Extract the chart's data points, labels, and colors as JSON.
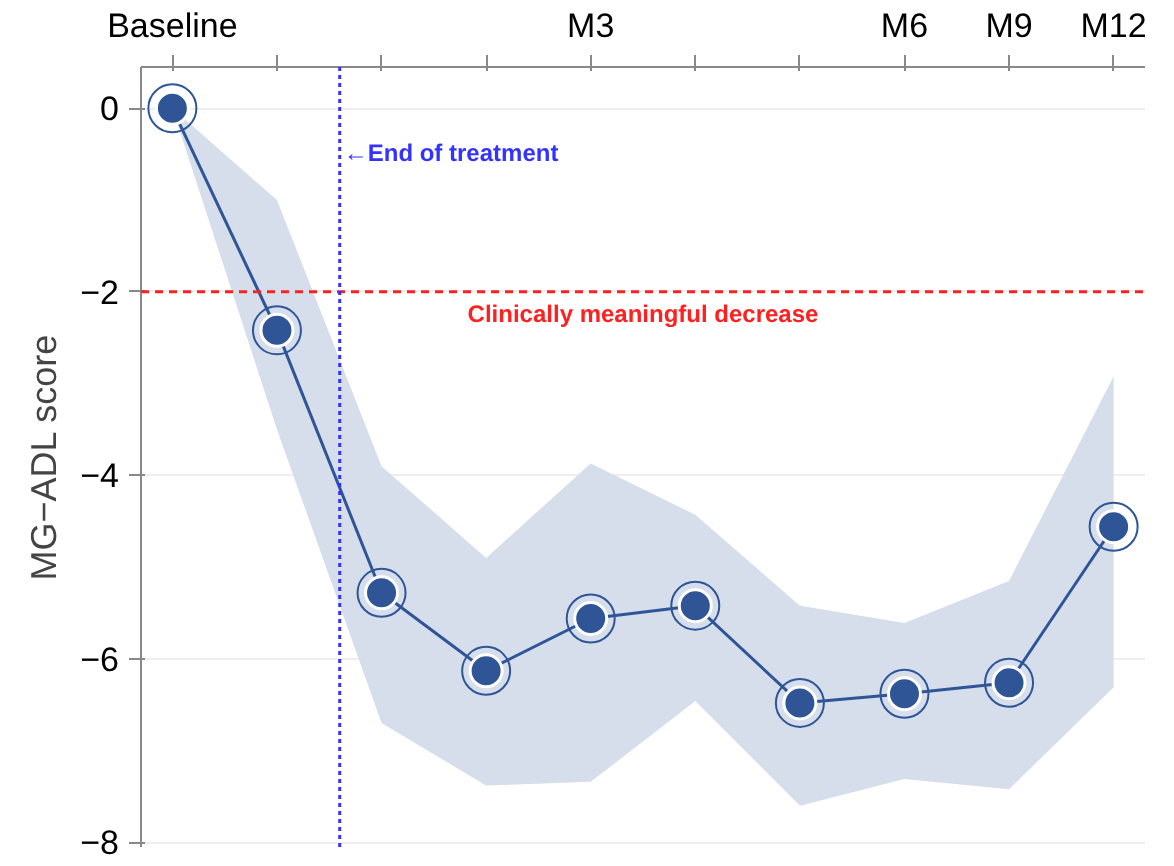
{
  "chart_data": {
    "type": "line",
    "ylabel": "MG−ADL score",
    "categories": [
      "Baseline",
      null,
      null,
      null,
      "M3",
      null,
      null,
      "M6",
      "M9",
      "M12"
    ],
    "series": [
      {
        "color": "#2f5597",
        "values": [
          0,
          -2.42,
          -5.28,
          -6.13,
          -5.56,
          -5.42,
          -6.48,
          -6.38,
          -6.26,
          -4.56
        ],
        "lower": [
          0,
          -3.5,
          -6.7,
          -7.38,
          -7.34,
          -6.46,
          -7.6,
          -7.31,
          -7.42,
          -6.31
        ],
        "upper": [
          0,
          -1.0,
          -3.9,
          -4.9,
          -3.87,
          -4.43,
          -5.42,
          -5.61,
          -5.15,
          -2.92
        ]
      }
    ],
    "ylim": [
      -8.05,
      0.45
    ],
    "yticks": [
      0,
      {
        "value": -2,
        "label": "−2"
      },
      {
        "value": -4,
        "label": "−4"
      },
      {
        "value": -6,
        "label": "−6"
      },
      {
        "value": -8,
        "label": "−8"
      }
    ],
    "ref_lines": [
      {
        "axis": "y",
        "value": -2,
        "label": "Clinically meaningful decrease",
        "color": "#ff2020",
        "line_style": "dashed"
      }
    ],
    "annotations": [
      "←End of treatment"
    ],
    "grid": "y",
    "marker": "circle",
    "line_style": "solid"
  }
}
